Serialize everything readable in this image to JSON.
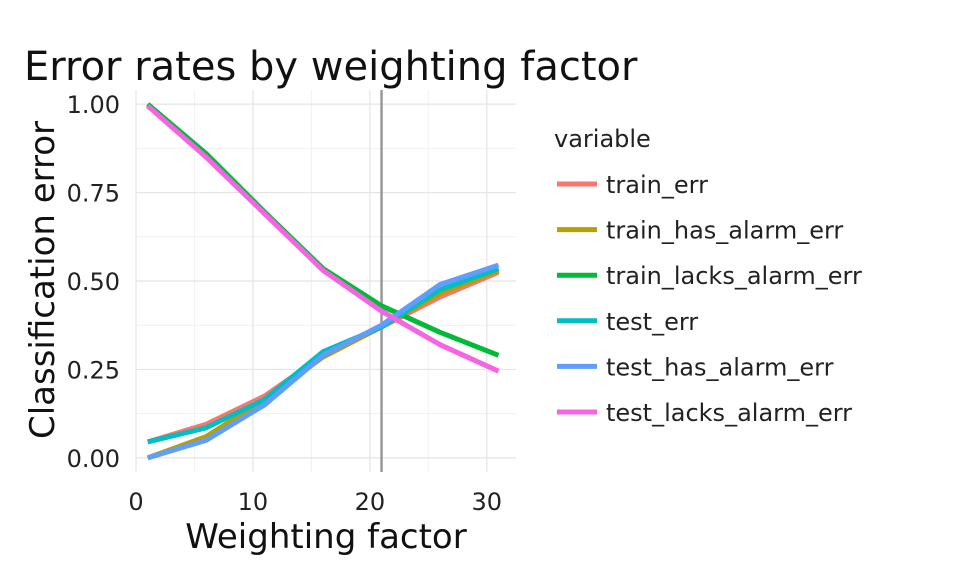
{
  "chart_data": {
    "type": "line",
    "title": "Error rates by weighting factor",
    "xlabel": "Weighting factor",
    "ylabel": "Classification error",
    "xlim": [
      0,
      32.5
    ],
    "ylim": [
      -0.04,
      1.04
    ],
    "x_ticks": [
      0,
      10,
      20,
      30
    ],
    "x_tick_labels": [
      "0",
      "10",
      "20",
      "30"
    ],
    "y_ticks": [
      0,
      0.25,
      0.5,
      0.75,
      1.0
    ],
    "y_tick_labels": [
      "0.00",
      "0.25",
      "0.50",
      "0.75",
      "1.00"
    ],
    "grid": true,
    "vline": 21,
    "vline_color": "#999999",
    "legend": {
      "title": "variable",
      "placement": "right"
    },
    "x": [
      1,
      6,
      11,
      16,
      21,
      26,
      31
    ],
    "series": [
      {
        "name": "train_err",
        "color": "#F8766D",
        "values": [
          0.045,
          0.095,
          0.175,
          0.29,
          0.37,
          0.455,
          0.525
        ]
      },
      {
        "name": "train_has_alarm_err",
        "color": "#B79F00",
        "values": [
          0.0,
          0.06,
          0.165,
          0.285,
          0.37,
          0.465,
          0.53
        ]
      },
      {
        "name": "train_lacks_alarm_err",
        "color": "#00BA38",
        "values": [
          1.0,
          0.86,
          0.695,
          0.535,
          0.43,
          0.355,
          0.29
        ]
      },
      {
        "name": "test_err",
        "color": "#00BFC4",
        "values": [
          0.045,
          0.085,
          0.165,
          0.3,
          0.37,
          0.475,
          0.535
        ]
      },
      {
        "name": "test_has_alarm_err",
        "color": "#619CFF",
        "values": [
          0.0,
          0.05,
          0.15,
          0.29,
          0.375,
          0.49,
          0.545
        ]
      },
      {
        "name": "test_lacks_alarm_err",
        "color": "#F564E3",
        "values": [
          0.995,
          0.85,
          0.69,
          0.53,
          0.415,
          0.32,
          0.245
        ]
      }
    ]
  }
}
